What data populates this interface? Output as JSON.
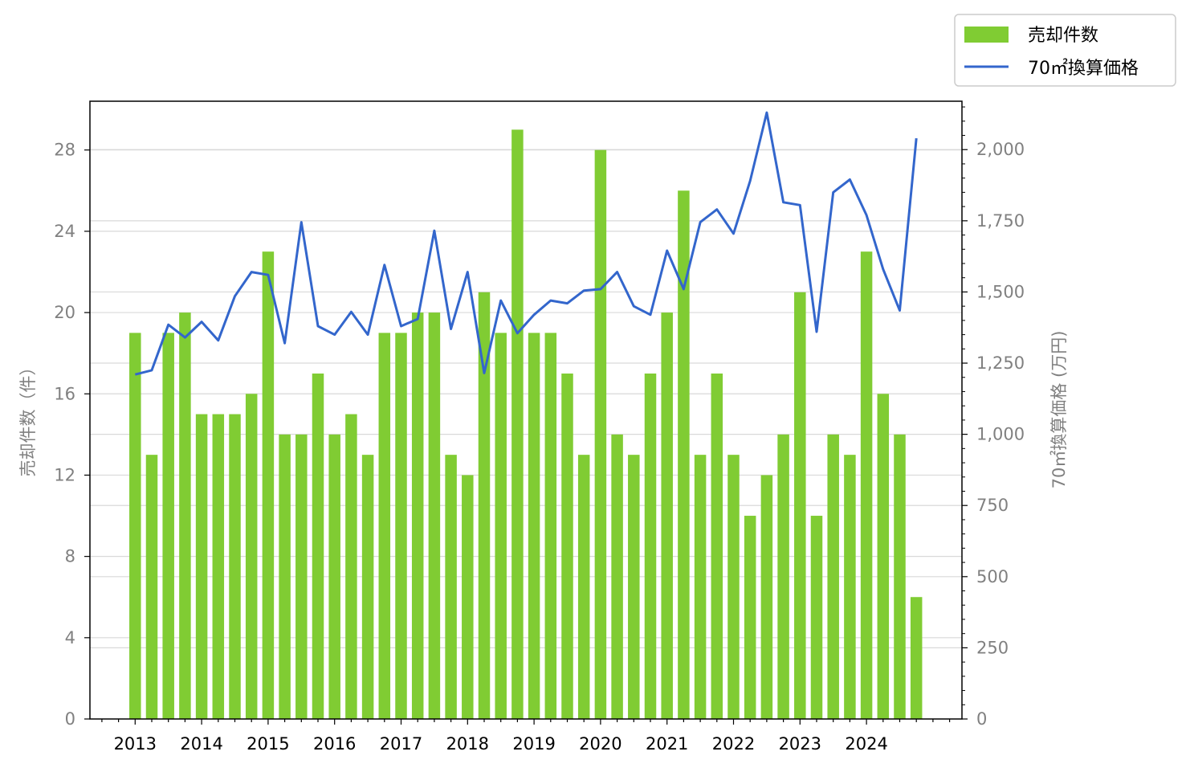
{
  "chart_data": {
    "type": "bar+line",
    "x": [
      "2013-01",
      "2013-04",
      "2013-07",
      "2013-10",
      "2014-01",
      "2014-04",
      "2014-07",
      "2014-10",
      "2015-01",
      "2015-04",
      "2015-07",
      "2015-10",
      "2016-01",
      "2016-04",
      "2016-07",
      "2016-10",
      "2017-01",
      "2017-04",
      "2017-07",
      "2017-10",
      "2018-01",
      "2018-04",
      "2018-07",
      "2018-10",
      "2019-01",
      "2019-04",
      "2019-07",
      "2019-10",
      "2020-01",
      "2020-04",
      "2020-07",
      "2020-10",
      "2021-01",
      "2021-04",
      "2021-07",
      "2021-10",
      "2022-01",
      "2022-04",
      "2022-07",
      "2022-10",
      "2023-01",
      "2023-04",
      "2023-07",
      "2023-10",
      "2024-01",
      "2024-04",
      "2024-07",
      "2024-10"
    ],
    "x_tick_labels": [
      "2013",
      "2014",
      "2015",
      "2016",
      "2017",
      "2018",
      "2019",
      "2020",
      "2021",
      "2022",
      "2023",
      "2024"
    ],
    "series": [
      {
        "name": "売却件数",
        "type": "bar",
        "axis": "left",
        "color": "#80cc33",
        "values": [
          19,
          13,
          19,
          20,
          15,
          15,
          15,
          16,
          23,
          14,
          14,
          17,
          14,
          15,
          13,
          19,
          19,
          20,
          20,
          13,
          12,
          21,
          19,
          29,
          19,
          19,
          17,
          13,
          28,
          14,
          13,
          17,
          20,
          26,
          13,
          17,
          13,
          10,
          12,
          14,
          21,
          10,
          14,
          13,
          23,
          16,
          14,
          6
        ]
      },
      {
        "name": "70㎡換算価格",
        "type": "line",
        "axis": "right",
        "color": "#3366cc",
        "values": [
          1210,
          1225,
          1385,
          1340,
          1395,
          1330,
          1485,
          1570,
          1560,
          1320,
          1745,
          1380,
          1350,
          1430,
          1350,
          1595,
          1380,
          1405,
          1715,
          1370,
          1570,
          1215,
          1470,
          1355,
          1420,
          1470,
          1460,
          1505,
          1510,
          1570,
          1450,
          1420,
          1645,
          1510,
          1745,
          1790,
          1705,
          1890,
          2130,
          1815,
          1805,
          1360,
          1850,
          1895,
          1770,
          1580,
          1435,
          2040
        ]
      }
    ],
    "y_left": {
      "label": "売却件数（件）",
      "ylim": [
        0,
        30.4
      ],
      "ticks": [
        "0",
        "4",
        "8",
        "12",
        "16",
        "20",
        "24",
        "28"
      ]
    },
    "y_right": {
      "label": "70㎡換算価格 (万円)",
      "ylim": [
        0,
        2170
      ],
      "ticks": [
        "0",
        "250",
        "500",
        "750",
        "1,000",
        "1,250",
        "1,500",
        "1,750",
        "2,000"
      ]
    },
    "grid": "horizontal",
    "legend": "outside-top-right"
  },
  "legend_items": [
    "売却件数",
    "70㎡換算価格"
  ]
}
